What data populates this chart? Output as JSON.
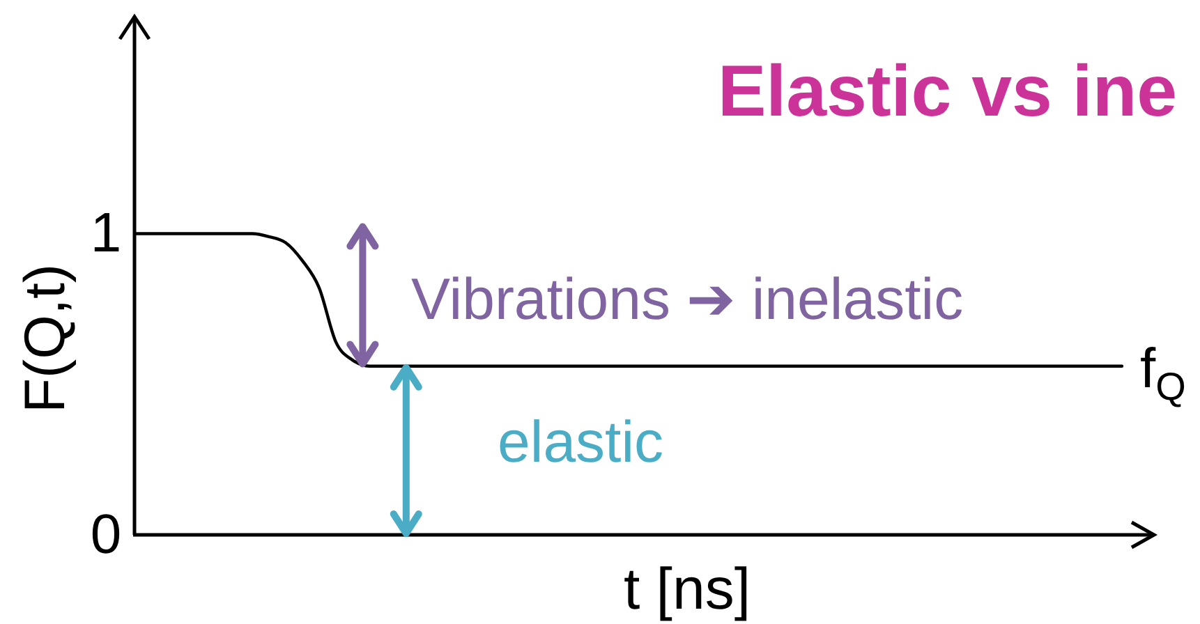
{
  "chart_data": {
    "type": "line",
    "title": "Elastic vs ine",
    "xlabel": "t [ns]",
    "ylabel": "F(Q,t)",
    "categories": [
      null,
      null,
      null,
      null,
      null,
      null,
      null,
      null,
      null,
      null,
      null,
      null,
      null,
      null,
      null,
      null,
      null,
      null,
      null,
      null,
      null,
      null,
      null,
      null,
      null,
      null,
      null,
      null,
      null,
      null,
      null,
      null,
      null,
      null,
      null,
      null,
      null,
      null,
      null,
      null,
      null,
      null,
      null,
      null,
      null,
      null,
      null,
      null,
      null,
      null,
      null,
      null,
      null,
      null,
      null,
      null,
      null,
      null,
      null,
      null
    ],
    "values": [
      1,
      1,
      1,
      1,
      1,
      1,
      1,
      1,
      0.99,
      0.97,
      0.91,
      0.82,
      0.64,
      0.58,
      0.56,
      0.56,
      0.56,
      0.56,
      0.56,
      0.56,
      0.56,
      0.56,
      0.56,
      0.56,
      0.56,
      0.56,
      0.56,
      0.56,
      0.56,
      0.56,
      0.56,
      0.56,
      0.56,
      0.56,
      0.56,
      0.56,
      0.56,
      0.56,
      0.56,
      0.56,
      0.56,
      0.56,
      0.56,
      0.56,
      0.56,
      0.56,
      0.56,
      0.56,
      0.56,
      0.56,
      0.56,
      0.56,
      0.56,
      0.56,
      0.56,
      0.56,
      0.56,
      0.56,
      0.56,
      0.56
    ],
    "color": "#000000",
    "ylim": [
      0,
      1.72
    ],
    "yticks": [
      0,
      1
    ],
    "annotations": [
      "Vibrations ➔ inelastic",
      "elastic",
      "f$_{Q}$"
    ]
  }
}
